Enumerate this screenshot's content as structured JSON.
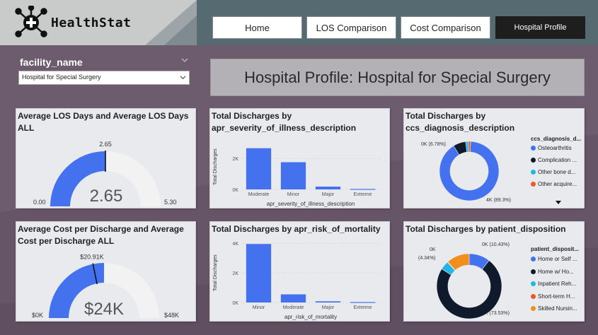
{
  "app": {
    "name": "HealthStat"
  },
  "nav": [
    {
      "label": "Home",
      "active": false
    },
    {
      "label": "LOS Comparison",
      "active": false
    },
    {
      "label": "Cost Comparison",
      "active": false
    },
    {
      "label": "Hospital Profile",
      "active": true
    }
  ],
  "slicer": {
    "title": "facility_name",
    "selected": "Hospital for Special Surgery"
  },
  "page_title": "Hospital Profile: Hospital for Special Surgery",
  "colors": {
    "primary": "#4472ef",
    "dark": "#0f1b2d",
    "orange": "#f28e1c",
    "cyan": "#22b5e8",
    "orangered": "#e85c20",
    "gauge_bg": "#f2f2f2"
  },
  "gauge_los": {
    "title_line1": "Average LOS Days and Average LOS Days",
    "title_line2": "ALL",
    "value_label": "2.65",
    "min_label": "0.00",
    "max_label": "5.30",
    "target_label": "2.65",
    "value": 2.65,
    "min": 0,
    "max": 5.3,
    "target": 2.65
  },
  "gauge_cost": {
    "title_line1": "Average Cost per Discharge and Average",
    "title_line2": "Cost per Discharge ALL",
    "value_label": "$24K",
    "min_label": "$0K",
    "max_label": "$48K",
    "target_label": "$20.91K",
    "value": 24,
    "min": 0,
    "max": 48,
    "target": 20.91
  },
  "chart_data": [
    {
      "id": "severity",
      "type": "bar",
      "title_line1": "Total Discharges by",
      "title_line2": "apr_severity_of_illness_description",
      "xlabel": "apr_severity_of_illness_description",
      "ylabel": "Total Discharges",
      "categories": [
        "Moderate",
        "Minor",
        "Major",
        "Extreme"
      ],
      "values": [
        2650,
        1750,
        180,
        30
      ],
      "yticks": [
        "0K",
        "2K"
      ],
      "ylim": [
        0,
        3000
      ]
    },
    {
      "id": "mortality",
      "type": "bar",
      "title": "Total Discharges by apr_risk_of_mortality",
      "xlabel": "apr_risk_of_mortality",
      "ylabel": "Total Discharges",
      "categories": [
        "Minor",
        "Moderate",
        "Major",
        "Extreme"
      ],
      "values": [
        3950,
        550,
        80,
        30
      ],
      "yticks": [
        "0K",
        "2K",
        "4K"
      ],
      "ylim": [
        0,
        4200
      ]
    },
    {
      "id": "diagnosis",
      "type": "pie",
      "title_line1": "Total Discharges by",
      "title_line2": "ccs_diagnosis_description",
      "legend_title": "ccs_diagnosis_d...",
      "labels": [
        "Osteoarthritis",
        "Complication ...",
        "Other bone d...",
        "Other acquire..."
      ],
      "values": [
        89.3,
        6.78,
        1.5,
        1.2
      ],
      "colors": [
        "#4472ef",
        "#0f1b2d",
        "#22b5e8",
        "#e85c20"
      ],
      "callouts": [
        "0K (6.78%)",
        "4K (89.3%)"
      ]
    },
    {
      "id": "disposition",
      "type": "pie",
      "title": "Total Discharges by patient_disposition",
      "legend_title": "patient_disposit...",
      "labels": [
        "Home or Self ...",
        "Home w/ Ho...",
        "Inpatient Reh...",
        "Short-term H...",
        "Skilled Nursin..."
      ],
      "values": [
        10.43,
        73.53,
        4.34,
        0.3,
        11.4
      ],
      "colors": [
        "#4472ef",
        "#0f1b2d",
        "#22b5e8",
        "#e85c20",
        "#f28e1c"
      ],
      "callouts": [
        "0K (10.43%)",
        "0K",
        "(4.34%)",
        "3K (73.53%)"
      ]
    }
  ]
}
